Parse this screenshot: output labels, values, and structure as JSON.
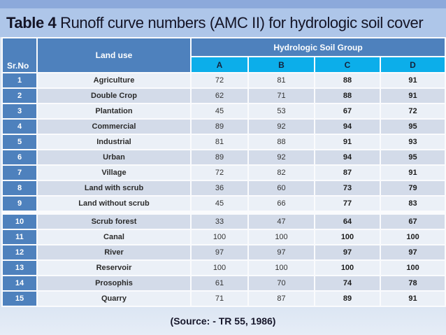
{
  "slide": {
    "title_bold": "Table 4",
    "title_rest": " Runoff curve numbers (AMC II) for hydrologic soil cover",
    "source": "(Source: - TR 55, 1986)"
  },
  "table": {
    "header": {
      "srno": "Sr.No",
      "land_use": "Land use",
      "soil_group": "Hydrologic Soil Group"
    },
    "soil_groups": [
      "A",
      "B",
      "C",
      "D"
    ],
    "rows": [
      {
        "sr": "1",
        "land_use": "Agriculture",
        "A": "72",
        "B": "81",
        "C": "88",
        "D": "91"
      },
      {
        "sr": "2",
        "land_use": "Double Crop",
        "A": "62",
        "B": "71",
        "C": "88",
        "D": "91"
      },
      {
        "sr": "3",
        "land_use": "Plantation",
        "A": "45",
        "B": "53",
        "C": "67",
        "D": "72"
      },
      {
        "sr": "4",
        "land_use": "Commercial",
        "A": "89",
        "B": "92",
        "C": "94",
        "D": "95"
      },
      {
        "sr": "5",
        "land_use": "Industrial",
        "A": "81",
        "B": "88",
        "C": "91",
        "D": "93"
      },
      {
        "sr": "6",
        "land_use": "Urban",
        "A": "89",
        "B": "92",
        "C": "94",
        "D": "95"
      },
      {
        "sr": "7",
        "land_use": "Village",
        "A": "72",
        "B": "82",
        "C": "87",
        "D": "91"
      },
      {
        "sr": "8",
        "land_use": "Land with scrub",
        "A": "36",
        "B": "60",
        "C": "73",
        "D": "79"
      },
      {
        "sr": "9",
        "land_use": "Land without scrub",
        "A": "45",
        "B": "66",
        "C": "77",
        "D": "83"
      },
      {
        "sr": "10",
        "land_use": "Scrub forest",
        "A": "33",
        "B": "47",
        "C": "64",
        "D": "67"
      },
      {
        "sr": "11",
        "land_use": "Canal",
        "A": "100",
        "B": "100",
        "C": "100",
        "D": "100"
      },
      {
        "sr": "12",
        "land_use": "River",
        "A": "97",
        "B": "97",
        "C": "97",
        "D": "97"
      },
      {
        "sr": "13",
        "land_use": "Reservoir",
        "A": "100",
        "B": "100",
        "C": "100",
        "D": "100"
      },
      {
        "sr": "14",
        "land_use": "Prosophis",
        "A": "61",
        "B": "70",
        "C": "74",
        "D": "78"
      },
      {
        "sr": "15",
        "land_use": "Quarry",
        "A": "71",
        "B": "87",
        "C": "89",
        "D": "91"
      }
    ]
  },
  "colors": {
    "header_blue": "#4E81BD",
    "soil_group_cyan": "#0CAEEA",
    "row_light": "#EBF0F7",
    "row_dark": "#D3DBE9",
    "top_strip": "#8CA9DB",
    "title_background": "#AEC6E9",
    "bottom_background": "#DCE6F3"
  }
}
